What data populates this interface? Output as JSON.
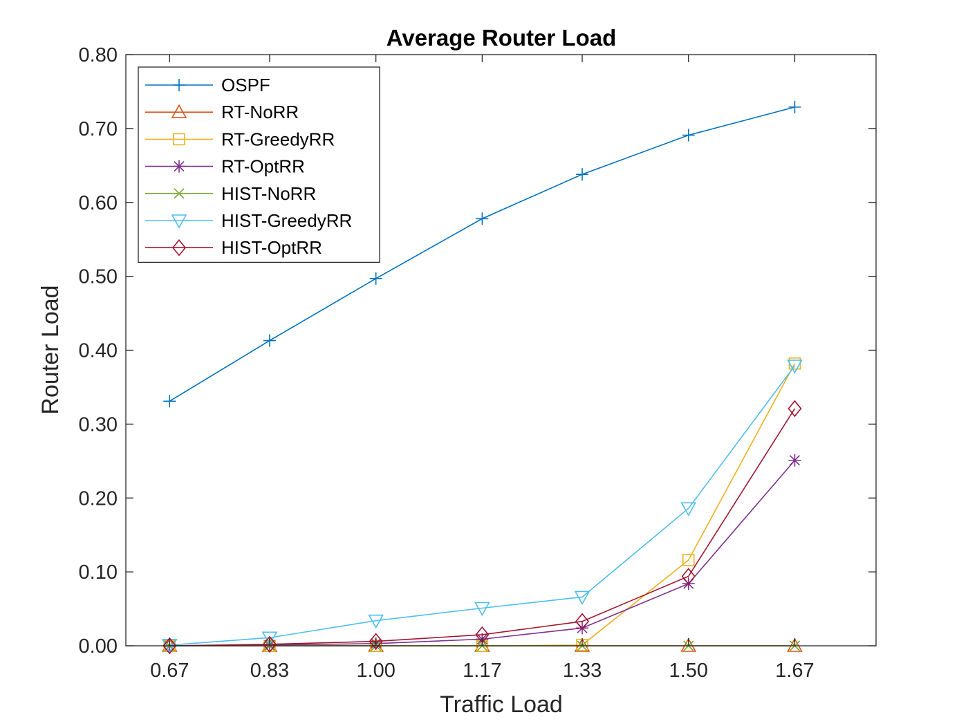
{
  "chart_data": {
    "type": "line",
    "title": "Average Router Load",
    "xlabel": "Traffic Load",
    "ylabel": "Router Load",
    "categories": [
      "0.67",
      "0.83",
      "1.00",
      "1.17",
      "1.33",
      "1.50",
      "1.67"
    ],
    "x": [
      0.67,
      0.83,
      1.0,
      1.17,
      1.33,
      1.5,
      1.67
    ],
    "xlim": [
      0.6,
      1.8
    ],
    "ylim": [
      0,
      0.8
    ],
    "yticks": [
      "0.00",
      "0.10",
      "0.20",
      "0.30",
      "0.40",
      "0.50",
      "0.60",
      "0.70",
      "0.80"
    ],
    "ytick_values": [
      0,
      0.1,
      0.2,
      0.3,
      0.4,
      0.5,
      0.6,
      0.7,
      0.8
    ],
    "grid": false,
    "legend_position": "top-left",
    "series": [
      {
        "name": "OSPF",
        "color": "#0072BD",
        "marker": "plus",
        "values": [
          0.331,
          0.413,
          0.497,
          0.578,
          0.638,
          0.691,
          0.729
        ]
      },
      {
        "name": "RT-NoRR",
        "color": "#D95319",
        "marker": "triangle-up",
        "values": [
          0.0,
          0.0,
          0.0,
          0.0,
          0.0,
          0.0,
          0.0
        ]
      },
      {
        "name": "RT-GreedyRR",
        "color": "#EDB120",
        "marker": "square",
        "values": [
          0.0,
          0.0,
          0.0,
          0.0,
          0.001,
          0.116,
          0.382
        ]
      },
      {
        "name": "RT-OptRR",
        "color": "#7E2F8E",
        "marker": "asterisk",
        "values": [
          0.0,
          0.001,
          0.003,
          0.009,
          0.024,
          0.084,
          0.251
        ]
      },
      {
        "name": "HIST-NoRR",
        "color": "#77AC30",
        "marker": "x",
        "values": [
          0.0,
          0.0,
          0.0,
          0.0,
          0.0,
          0.0,
          0.0
        ]
      },
      {
        "name": "HIST-GreedyRR",
        "color": "#4DBEEE",
        "marker": "triangle-down",
        "values": [
          0.001,
          0.011,
          0.034,
          0.051,
          0.066,
          0.186,
          0.379
        ]
      },
      {
        "name": "HIST-OptRR",
        "color": "#A2142F",
        "marker": "diamond",
        "values": [
          0.0,
          0.002,
          0.006,
          0.015,
          0.033,
          0.094,
          0.321
        ]
      }
    ]
  }
}
